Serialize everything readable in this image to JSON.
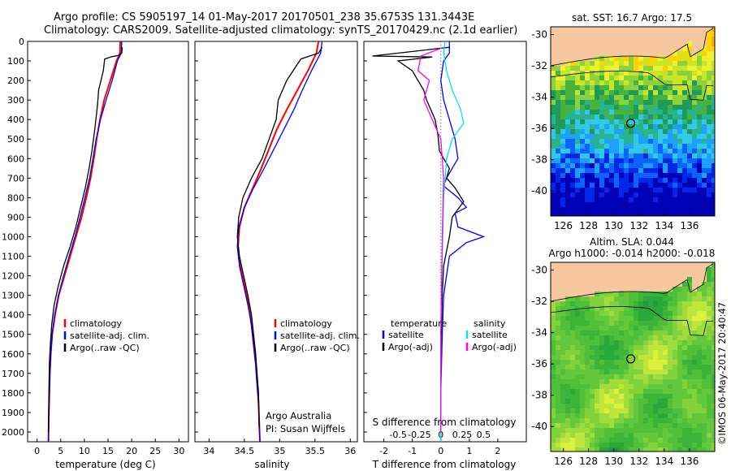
{
  "header": {
    "line1": "Argo profile: CS 5905197_14 01-May-2017 20170501_238 35.6753S 131.3443E",
    "line2": "Climatology: CARS2009. Satellite-adjusted climatology: synTS_20170429.nc (2.1d earlier)"
  },
  "colors": {
    "climatology": "#ff0000",
    "satellite": "#0000ff",
    "argo": "#000000",
    "sal_satellite": "#00e5ee",
    "sal_argo": "#ff00ff",
    "land": "#f7c8a0"
  },
  "chart_data": [
    {
      "type": "line",
      "id": "temperature",
      "xlabel": "temperature (deg C)",
      "ylabel": "",
      "xlim": [
        -2,
        32
      ],
      "ylim": [
        2050,
        0
      ],
      "xticks": [
        0,
        5,
        10,
        15,
        20,
        25,
        30
      ],
      "yticks": [
        0,
        100,
        200,
        300,
        400,
        500,
        600,
        700,
        800,
        900,
        1000,
        1100,
        1200,
        1300,
        1400,
        1500,
        1600,
        1700,
        1800,
        1900,
        2000
      ],
      "legend": [
        "climatology",
        "satellite-adj. clim.",
        "Argo(..raw -QC)"
      ],
      "series": [
        {
          "name": "climatology",
          "color": "#ff0000",
          "x": [
            17.6,
            17.5,
            16.8,
            15.5,
            14.2,
            13.3,
            12.6,
            12.0,
            11.3,
            10.4,
            9.4,
            8.2,
            7.0,
            5.8,
            4.6,
            3.8,
            3.2,
            2.9,
            2.7,
            2.6,
            2.5,
            2.4
          ],
          "y": [
            0,
            60,
            100,
            200,
            300,
            400,
            500,
            600,
            700,
            800,
            900,
            1000,
            1100,
            1200,
            1300,
            1400,
            1500,
            1600,
            1700,
            1800,
            1900,
            2050
          ]
        },
        {
          "name": "satellite-adj. clim.",
          "color": "#0000ff",
          "x": [
            17.9,
            17.8,
            17.0,
            15.9,
            14.6,
            13.4,
            12.5,
            11.8,
            11.1,
            10.1,
            9.1,
            8.0,
            6.8,
            5.6,
            4.5,
            3.7,
            3.2,
            2.9,
            2.7,
            2.6,
            2.5,
            2.4
          ],
          "y": [
            0,
            60,
            100,
            200,
            300,
            400,
            500,
            600,
            700,
            800,
            900,
            1000,
            1100,
            1200,
            1300,
            1400,
            1500,
            1600,
            1700,
            1800,
            1900,
            2050
          ]
        },
        {
          "name": "Argo(..raw -QC)",
          "color": "#000000",
          "x": [
            18.0,
            17.9,
            17.2,
            15.8,
            14.3,
            14.0,
            13.0,
            12.8,
            12.2,
            11.6,
            11.0,
            10.2,
            9.2,
            8.2,
            7.0,
            5.6,
            4.5,
            3.6,
            3.1,
            2.8,
            2.6,
            2.5,
            2.4
          ],
          "y": [
            30,
            60,
            72,
            78,
            90,
            150,
            250,
            320,
            450,
            560,
            650,
            750,
            850,
            950,
            1050,
            1150,
            1250,
            1350,
            1450,
            1550,
            1650,
            1800,
            2000
          ]
        }
      ]
    },
    {
      "type": "line",
      "id": "salinity",
      "xlabel": "salinity",
      "ylabel": "",
      "xlim": [
        33.8,
        36.1
      ],
      "ylim": [
        2050,
        0
      ],
      "xticks": [
        34,
        34.5,
        35,
        35.5,
        36
      ],
      "yticks": [
        0,
        100,
        200,
        300,
        400,
        500,
        600,
        700,
        800,
        900,
        1000,
        1100,
        1200,
        1300,
        1400,
        1500,
        1600,
        1700,
        1800,
        1900,
        2000
      ],
      "legend": [
        "climatology",
        "satellite-adj. clim.",
        "Argo(..raw -QC)"
      ],
      "annotation_lines": [
        "Argo Australia",
        "PI: Susan Wijffels"
      ],
      "series": [
        {
          "name": "climatology",
          "color": "#ff0000",
          "x": [
            35.55,
            35.52,
            35.4,
            35.25,
            35.1,
            34.96,
            34.85,
            34.74,
            34.62,
            34.5,
            34.43,
            34.41,
            34.44,
            34.5,
            34.56,
            34.6,
            34.63,
            34.66,
            34.68,
            34.7,
            34.72
          ],
          "y": [
            0,
            60,
            150,
            250,
            350,
            450,
            550,
            650,
            750,
            850,
            950,
            1050,
            1150,
            1250,
            1350,
            1450,
            1550,
            1650,
            1750,
            1850,
            2050
          ]
        },
        {
          "name": "satellite-adj. clim.",
          "color": "#0000ff",
          "x": [
            35.6,
            35.58,
            35.45,
            35.32,
            35.2,
            35.06,
            34.92,
            34.78,
            34.63,
            34.5,
            34.42,
            34.4,
            34.43,
            34.49,
            34.55,
            34.6,
            34.63,
            34.66,
            34.68,
            34.7,
            34.72
          ],
          "y": [
            0,
            60,
            150,
            250,
            350,
            450,
            550,
            650,
            750,
            850,
            950,
            1050,
            1150,
            1250,
            1350,
            1450,
            1550,
            1650,
            1750,
            1850,
            2050
          ]
        },
        {
          "name": "Argo(..raw -QC)",
          "color": "#000000",
          "x": [
            35.6,
            35.55,
            35.3,
            35.1,
            34.98,
            34.95,
            34.85,
            34.75,
            34.6,
            34.48,
            34.42,
            34.4,
            34.43,
            34.49,
            34.55,
            34.6,
            34.63,
            34.66,
            34.68,
            34.7,
            34.71
          ],
          "y": [
            30,
            60,
            90,
            200,
            300,
            400,
            500,
            600,
            700,
            800,
            900,
            1000,
            1100,
            1200,
            1300,
            1400,
            1500,
            1600,
            1700,
            1800,
            1980
          ]
        }
      ]
    },
    {
      "type": "line",
      "id": "difference",
      "xlabel": "T difference from climatology",
      "x2label": "S difference from climatology",
      "xlim": [
        -2.7,
        3.0
      ],
      "ylim": [
        2050,
        0
      ],
      "xticks": [
        -2,
        -1,
        0,
        1,
        2
      ],
      "xticklabels": [
        "-2",
        "-1",
        "0",
        "1",
        "2"
      ],
      "x2ticks": [
        -1.5,
        -0.75,
        0,
        0.75,
        1.5
      ],
      "x2ticklabels": [
        "-0.5",
        "-0.25",
        "0",
        "0.25",
        "0.5"
      ],
      "yticks": [
        0,
        100,
        200,
        300,
        400,
        500,
        600,
        700,
        800,
        900,
        1000,
        1100,
        1200,
        1300,
        1400,
        1500,
        1600,
        1700,
        1800,
        1900,
        2000
      ],
      "legend_left_title": "temperature",
      "legend_right_title": "salinity",
      "legend_left": [
        "satellite",
        "Argo(-adj)"
      ],
      "legend_right": [
        "satellite",
        "Argo(-adj)"
      ],
      "series": [
        {
          "name": "temperature satellite",
          "color": "#0000ff",
          "x": [
            0.3,
            0.3,
            0.1,
            0.0,
            0.1,
            0.3,
            0.5,
            0.6,
            0.2,
            0.1,
            0.6,
            0.9,
            0.5,
            0.6,
            1.5,
            0.9,
            0.3,
            0.1,
            0.05,
            0.0,
            0.0
          ],
          "y": [
            0,
            60,
            100,
            200,
            300,
            400,
            500,
            600,
            700,
            740,
            800,
            850,
            880,
            950,
            1000,
            1030,
            1100,
            1300,
            1500,
            1800,
            2050
          ]
        },
        {
          "name": "temperature Argo(-adj)",
          "color": "#000000",
          "x": [
            0.3,
            -2.0,
            -2.4,
            -0.3,
            -1.5,
            -1.0,
            -0.6,
            -0.5,
            -0.2,
            -0.1,
            -0.05,
            0.1,
            0.3,
            0.2,
            0.5,
            0.8,
            0.4,
            0.3,
            0.1,
            0.05,
            0.0,
            0.0
          ],
          "y": [
            30,
            68,
            75,
            80,
            100,
            150,
            250,
            300,
            400,
            480,
            560,
            600,
            650,
            700,
            750,
            820,
            900,
            1000,
            1150,
            1300,
            1600,
            2000
          ]
        },
        {
          "name": "salinity satellite",
          "color": "#00e5ee",
          "x": [
            0.15,
            0.1,
            0.2,
            0.4,
            0.7,
            0.8,
            0.4,
            0.2,
            0.1,
            0.05,
            0.0,
            0.0
          ],
          "y": [
            0,
            60,
            150,
            250,
            350,
            420,
            500,
            600,
            800,
            1100,
            1500,
            2050
          ]
        },
        {
          "name": "salinity Argo(-adj)",
          "color": "#ff00ff",
          "x": [
            0.1,
            -0.7,
            -0.8,
            -0.4,
            -0.6,
            -0.3,
            0.0,
            0.1,
            0.05,
            0.0,
            0.0
          ],
          "y": [
            30,
            75,
            150,
            200,
            300,
            400,
            500,
            700,
            1000,
            1500,
            2000
          ]
        }
      ]
    }
  ],
  "maps": [
    {
      "id": "sst-map",
      "title": "sat. SST: 16.7 Argo: 17.5",
      "xticks": [
        126,
        128,
        130,
        132,
        134,
        136
      ],
      "yticks": [
        -30,
        -32,
        -34,
        -36,
        -38,
        -40
      ],
      "xlim": [
        125,
        138
      ],
      "ylim": [
        -29.5,
        -41.6
      ],
      "float_lon": 131.3443,
      "float_lat": -35.6753
    },
    {
      "id": "sla-map",
      "title_line1": "Altim. SLA: 0.044",
      "title_line2": "Argo h1000: -0.014 h2000: -0.018",
      "xticks": [
        126,
        128,
        130,
        132,
        134,
        136
      ],
      "yticks": [
        -30,
        -32,
        -34,
        -36,
        -38,
        -40
      ],
      "xlim": [
        125,
        138
      ],
      "ylim": [
        -29.5,
        -41.6
      ],
      "float_lon": 131.3443,
      "float_lat": -35.6753
    }
  ],
  "credit": "©IMOS 06-May-2017 20:40:47"
}
